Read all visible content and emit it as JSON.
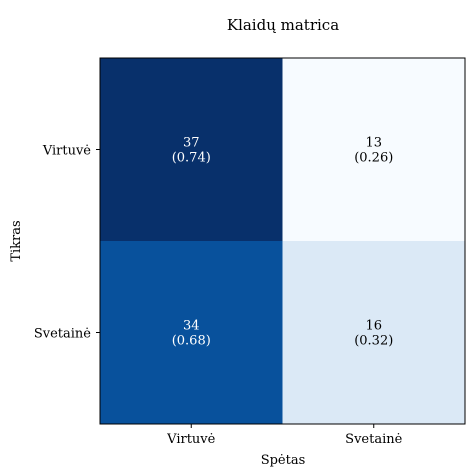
{
  "chart_data": {
    "type": "heatmap",
    "title": "Klaidų matrica",
    "xlabel": "Spėtas",
    "ylabel": "Tikras",
    "x_categories": [
      "Virtuvė",
      "Svetainė"
    ],
    "y_categories": [
      "Virtuvė",
      "Svetainė"
    ],
    "values": [
      [
        37,
        13
      ],
      [
        34,
        16
      ]
    ],
    "fractions": [
      [
        0.74,
        0.26
      ],
      [
        0.68,
        0.32
      ]
    ],
    "cell_labels": [
      [
        {
          "count": "37",
          "ratio": "(0.74)"
        },
        {
          "count": "13",
          "ratio": "(0.26)"
        }
      ],
      [
        {
          "count": "34",
          "ratio": "(0.68)"
        },
        {
          "count": "16",
          "ratio": "(0.32)"
        }
      ]
    ],
    "colormap": "Blues",
    "cell_colors": [
      [
        "#08306b",
        "#f7fbff"
      ],
      [
        "#08519c",
        "#dbe9f6"
      ]
    ],
    "text_colors": [
      [
        "#ffffff",
        "#000000"
      ],
      [
        "#ffffff",
        "#000000"
      ]
    ],
    "grid": false
  }
}
